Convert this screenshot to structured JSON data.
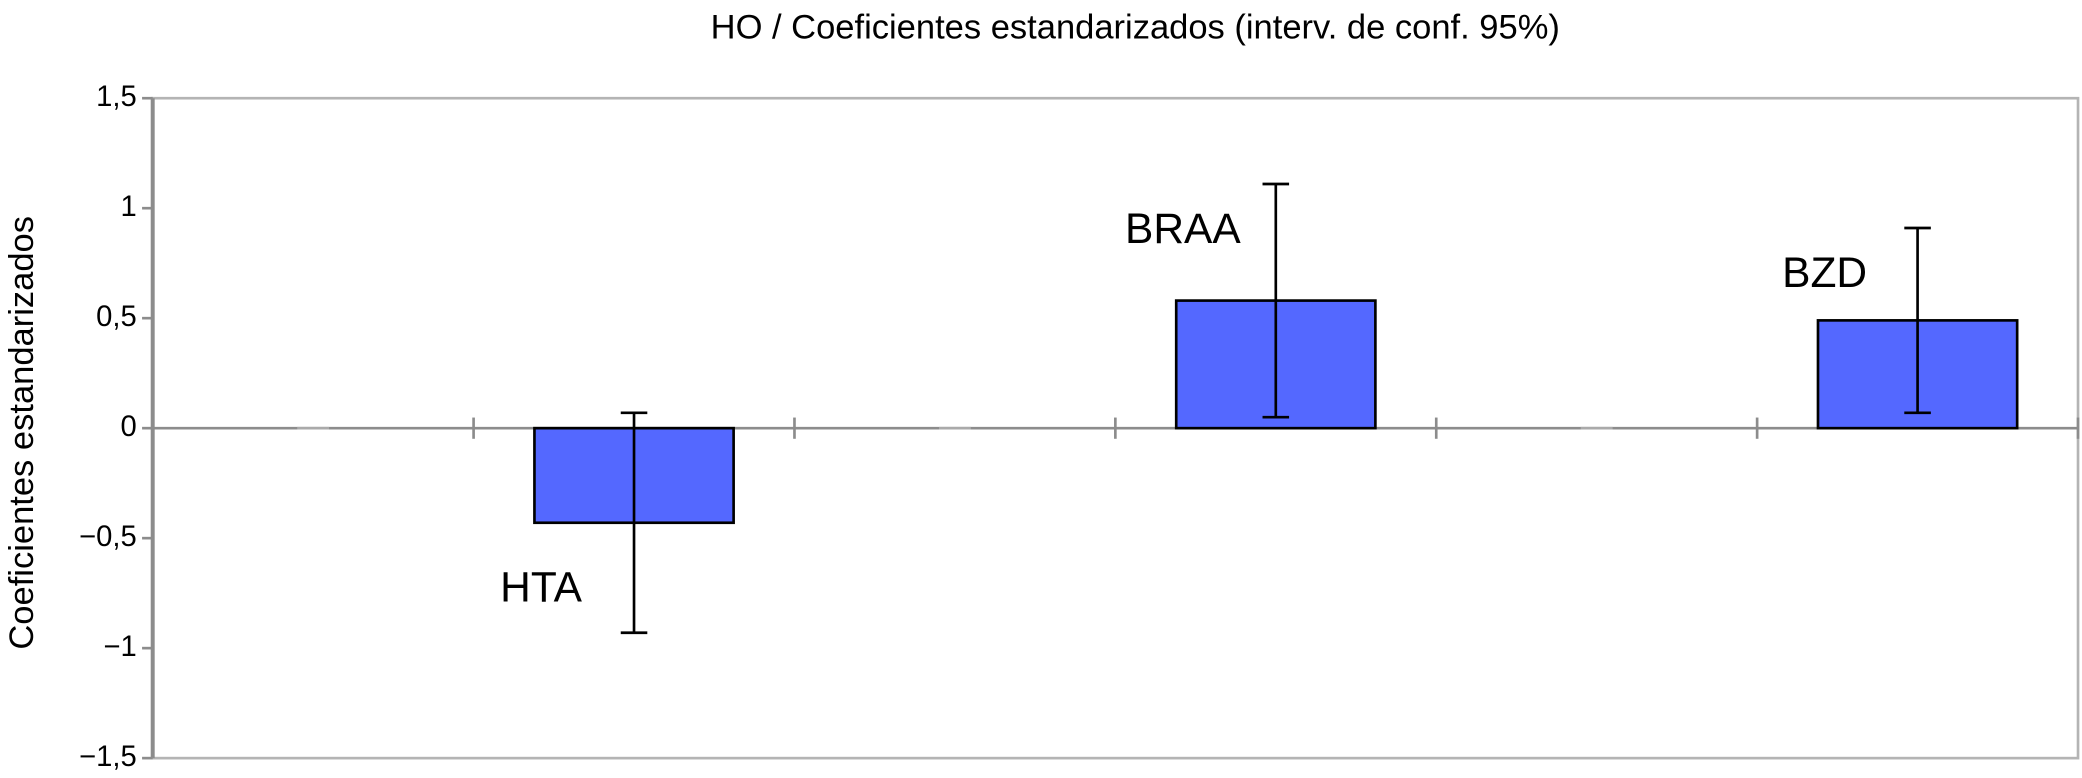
{
  "chart_data": {
    "type": "bar",
    "title": "HO / Coeficientes estandarizados (interv. de conf. 95%)",
    "y_label": "Coeficientes estandarizados",
    "categories": [
      null,
      "HTA",
      null,
      "BRAA",
      null,
      "BZD"
    ],
    "values": [
      0,
      -0.43,
      0,
      0.58,
      0,
      0.49
    ],
    "errors": [
      null,
      0.5,
      null,
      0.53,
      null,
      0.42
    ],
    "color": "#5468ff",
    "ylim": [
      -1.5,
      1.5
    ],
    "yticks": [
      {
        "value": -1.5,
        "label": "−1,5"
      },
      {
        "value": -1,
        "label": "−1"
      },
      {
        "value": -0.5,
        "label": "−0,5"
      },
      0,
      {
        "value": 0.5,
        "label": "0,5"
      },
      1,
      {
        "value": 1.5,
        "label": "1,5"
      }
    ],
    "grid": false
  }
}
